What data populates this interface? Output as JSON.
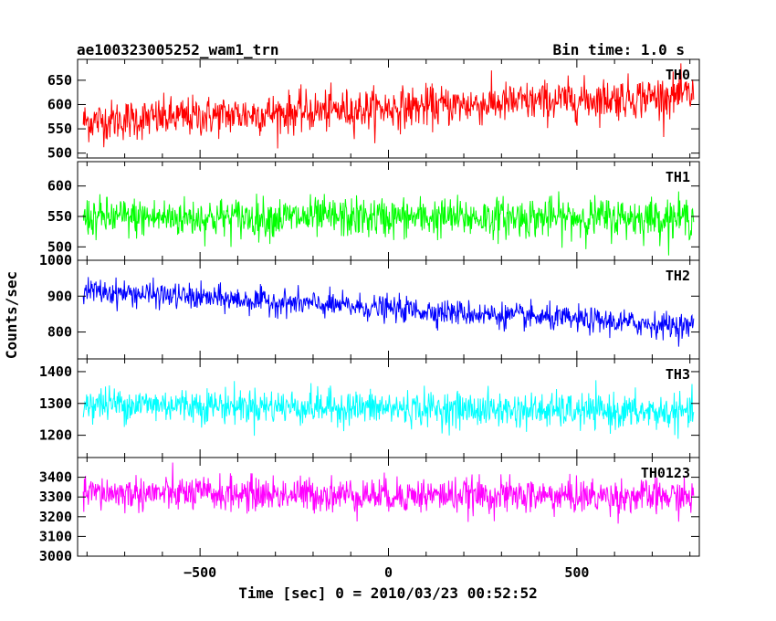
{
  "header": {
    "title": "ae100323005252_wam1_trn",
    "bin_time": "Bin time: 1.0 s"
  },
  "chart_data": {
    "type": "line",
    "xlabel": "Time [sec] 0 = 2010/03/23 00:52:52",
    "ylabel": "Counts/sec",
    "xlim": [
      -825,
      825
    ],
    "xticks": [
      -500,
      0,
      500
    ],
    "xtick_labels": [
      "−500",
      "0",
      "500"
    ],
    "x_range": [
      -810,
      810
    ],
    "panels": [
      {
        "name": "TH0",
        "color": "#ff0000",
        "ylim": [
          490,
          693
        ],
        "yticks": [
          500,
          550,
          600,
          650
        ],
        "start": 565,
        "end": 620,
        "spread": 38
      },
      {
        "name": "TH1",
        "color": "#00ff00",
        "ylim": [
          478,
          640
        ],
        "yticks": [
          500,
          550,
          600
        ],
        "start": 548,
        "end": 548,
        "spread": 30
      },
      {
        "name": "TH2",
        "color": "#0000ff",
        "ylim": [
          725,
          1000
        ],
        "yticks": [
          800,
          900,
          1000
        ],
        "start": 915,
        "end": 815,
        "spread": 32
      },
      {
        "name": "TH3",
        "color": "#00ffff",
        "ylim": [
          1130,
          1440
        ],
        "yticks": [
          1200,
          1300,
          1400
        ],
        "start": 1300,
        "end": 1270,
        "spread": 50
      },
      {
        "name": "TH0123",
        "color": "#ff00ff",
        "ylim": [
          3000,
          3500
        ],
        "yticks": [
          3000,
          3100,
          3200,
          3300,
          3400
        ],
        "start": 3320,
        "end": 3300,
        "spread": 80
      }
    ]
  }
}
